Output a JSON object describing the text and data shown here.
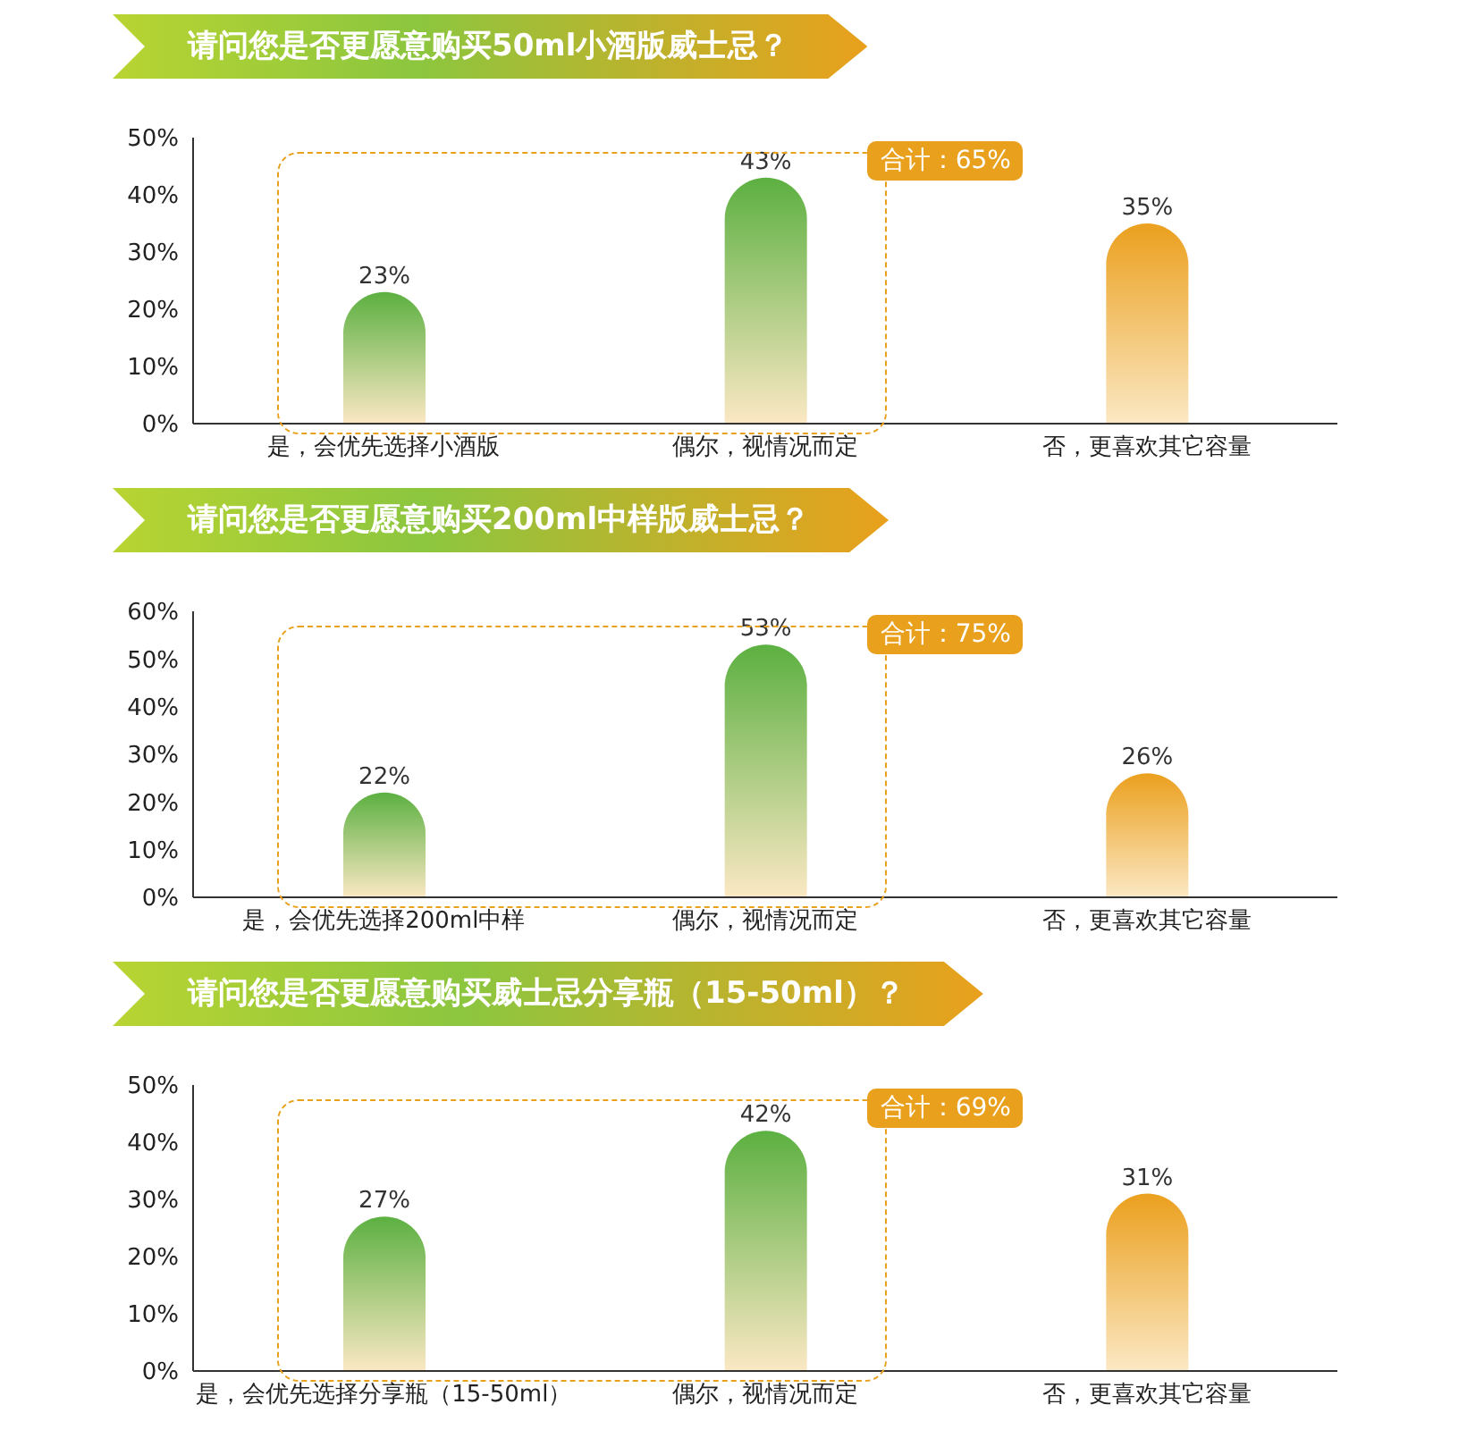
{
  "chart_data": [
    {
      "type": "bar",
      "title": "请问您是否更愿意购买50ml小酒版威士忌？",
      "categories": [
        "是，会优先选择小酒版",
        "偶尔，视情况而定",
        "否，更喜欢其它容量"
      ],
      "values": [
        23,
        43,
        35
      ],
      "colors": [
        "#5cb041",
        "#5cb041",
        "#eba01e"
      ],
      "value_labels": [
        "23%",
        "43%",
        "35%"
      ],
      "ylim": [
        0,
        50
      ],
      "yticks": [
        {
          "value": 0,
          "label": "0%"
        },
        {
          "value": 10,
          "label": "10%"
        },
        {
          "value": 20,
          "label": "20%"
        },
        {
          "value": 30,
          "label": "30%"
        },
        {
          "value": 40,
          "label": "40%"
        },
        {
          "value": 50,
          "label": "50%"
        }
      ],
      "annotations": [
        "合计：65%"
      ],
      "grid": false,
      "legend": false
    },
    {
      "type": "bar",
      "title": "请问您是否更愿意购买200ml中样版威士忌？",
      "categories": [
        "是，会优先选择200ml中样",
        "偶尔，视情况而定",
        "否，更喜欢其它容量"
      ],
      "values": [
        22,
        53,
        26
      ],
      "colors": [
        "#5cb041",
        "#5cb041",
        "#eba01e"
      ],
      "value_labels": [
        "22%",
        "53%",
        "26%"
      ],
      "ylim": [
        0,
        60
      ],
      "yticks": [
        {
          "value": 0,
          "label": "0%"
        },
        {
          "value": 10,
          "label": "10%"
        },
        {
          "value": 20,
          "label": "20%"
        },
        {
          "value": 30,
          "label": "30%"
        },
        {
          "value": 40,
          "label": "40%"
        },
        {
          "value": 50,
          "label": "50%"
        },
        {
          "value": 60,
          "label": "60%"
        }
      ],
      "annotations": [
        "合计：75%"
      ],
      "grid": false,
      "legend": false
    },
    {
      "type": "bar",
      "title": "请问您是否更愿意购买威士忌分享瓶（15-50ml）？",
      "categories": [
        "是，会优先选择分享瓶（15-50ml）",
        "偶尔，视情况而定",
        "否，更喜欢其它容量"
      ],
      "values": [
        27,
        42,
        31
      ],
      "colors": [
        "#5cb041",
        "#5cb041",
        "#eba01e"
      ],
      "value_labels": [
        "27%",
        "42%",
        "31%"
      ],
      "ylim": [
        0,
        50
      ],
      "yticks": [
        {
          "value": 0,
          "label": "0%"
        },
        {
          "value": 10,
          "label": "10%"
        },
        {
          "value": 20,
          "label": "20%"
        },
        {
          "value": 30,
          "label": "30%"
        },
        {
          "value": 40,
          "label": "40%"
        },
        {
          "value": 50,
          "label": "50%"
        }
      ],
      "annotations": [
        "合计：69%"
      ],
      "grid": false,
      "legend": false
    }
  ]
}
